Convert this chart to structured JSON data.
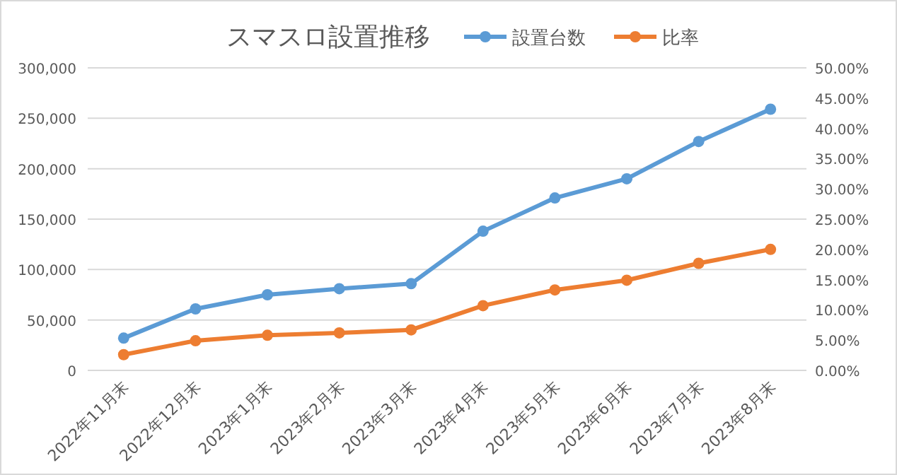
{
  "chart_data": {
    "type": "line",
    "title": "スマスロ設置推移",
    "categories": [
      "2022年11月末",
      "2022年12月末",
      "2023年1月末",
      "2023年2月末",
      "2023年3月末",
      "2023年4月末",
      "2023年5月末",
      "2023年6月末",
      "2023年7月末",
      "2023年8月末"
    ],
    "series": [
      {
        "name": "設置台数",
        "color": "#5b9bd5",
        "values": [
          32000,
          61000,
          75000,
          81000,
          86000,
          138000,
          171000,
          190000,
          227000,
          259000
        ]
      },
      {
        "name": "比率",
        "color": "#ed7d31",
        "axis": "y2",
        "values": [
          2.6,
          4.9,
          5.8,
          6.2,
          6.7,
          10.7,
          13.3,
          14.9,
          17.7,
          20.0
        ]
      }
    ],
    "ylim": [
      0,
      300000
    ],
    "yticks": [
      {
        "value": 0,
        "label": "0"
      },
      {
        "value": 50000,
        "label": "50,000"
      },
      {
        "value": 100000,
        "label": "100,000"
      },
      {
        "value": 150000,
        "label": "150,000"
      },
      {
        "value": 200000,
        "label": "200,000"
      },
      {
        "value": 250000,
        "label": "250,000"
      },
      {
        "value": 300000,
        "label": "300,000"
      }
    ],
    "y2lim": [
      0,
      50
    ],
    "y2ticks": [
      {
        "value": 0,
        "label": "0.00%"
      },
      {
        "value": 5,
        "label": "5.00%"
      },
      {
        "value": 10,
        "label": "10.00%"
      },
      {
        "value": 15,
        "label": "15.00%"
      },
      {
        "value": 20,
        "label": "20.00%"
      },
      {
        "value": 25,
        "label": "25.00%"
      },
      {
        "value": 30,
        "label": "30.00%"
      },
      {
        "value": 35,
        "label": "35.00%"
      },
      {
        "value": 40,
        "label": "40.00%"
      },
      {
        "value": 45,
        "label": "45.00%"
      },
      {
        "value": 50,
        "label": "50.00%"
      }
    ],
    "grid": "y",
    "legend": "top",
    "marker": "circle",
    "line_style": "solid"
  }
}
